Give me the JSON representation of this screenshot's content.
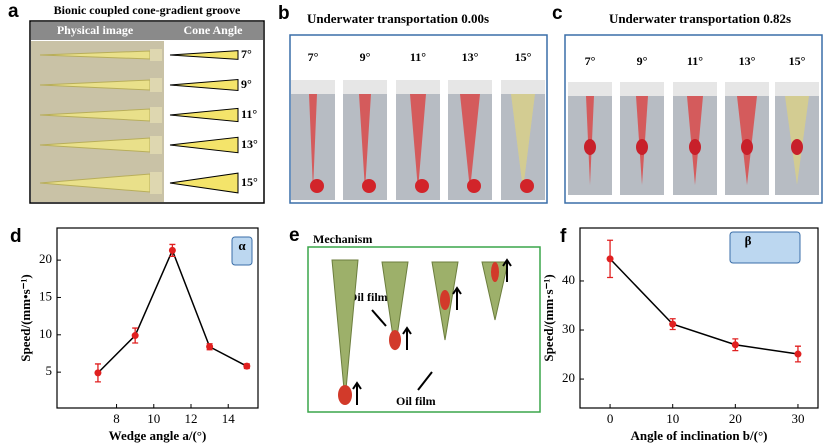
{
  "panel_a": {
    "label": "a",
    "title": "Bionic coupled cone-gradient groove",
    "col1": "Physical image",
    "col2": "Cone Angle",
    "angles": [
      "7°",
      "9°",
      "11°",
      "13°",
      "15°"
    ]
  },
  "panel_b": {
    "label": "b",
    "title": "Underwater transportation 0.00s",
    "angles": [
      "7°",
      "9°",
      "11°",
      "13°",
      "15°"
    ]
  },
  "panel_c": {
    "label": "c",
    "title": "Underwater transportation 0.82s",
    "angles": [
      "7°",
      "9°",
      "11°",
      "13°",
      "15°"
    ]
  },
  "panel_e": {
    "label": "e",
    "title": "Mechanism",
    "note1": "Oil film",
    "note2": "Oil film"
  },
  "chart_data": [
    {
      "type": "line",
      "panel_label": "d",
      "inset": "α",
      "xlabel": "Wedge angle a/(°)",
      "ylabel": "Speed/(mm•s⁻¹)",
      "x": [
        7,
        9,
        11,
        13,
        15
      ],
      "values": [
        4.9,
        9.9,
        21.3,
        8.4,
        5.8
      ],
      "errors": [
        1.2,
        1.0,
        0.8,
        0.4,
        0.3
      ],
      "color": "#e02020",
      "line_color": "#000000",
      "xlim": [
        4.8,
        15.6
      ],
      "ylim": [
        0.2,
        24.3
      ],
      "xticks": [
        8,
        10,
        12,
        14
      ],
      "yticks": [
        5,
        10,
        15,
        20
      ]
    },
    {
      "type": "line",
      "panel_label": "f",
      "inset": "β",
      "xlabel": "Angle of inclination b/(°)",
      "ylabel": "Speed/(mm·s⁻¹)",
      "x": [
        0,
        10,
        20,
        30
      ],
      "values": [
        44.5,
        31.2,
        27.0,
        25.1
      ],
      "errors": [
        3.8,
        1.1,
        1.2,
        1.6
      ],
      "color": "#e02020",
      "line_color": "#000000",
      "xlim": [
        -4.8,
        33.2
      ],
      "ylim": [
        14.1,
        50.8
      ],
      "xticks": [
        0,
        10,
        20,
        30
      ],
      "yticks": [
        20,
        30,
        40
      ]
    }
  ]
}
